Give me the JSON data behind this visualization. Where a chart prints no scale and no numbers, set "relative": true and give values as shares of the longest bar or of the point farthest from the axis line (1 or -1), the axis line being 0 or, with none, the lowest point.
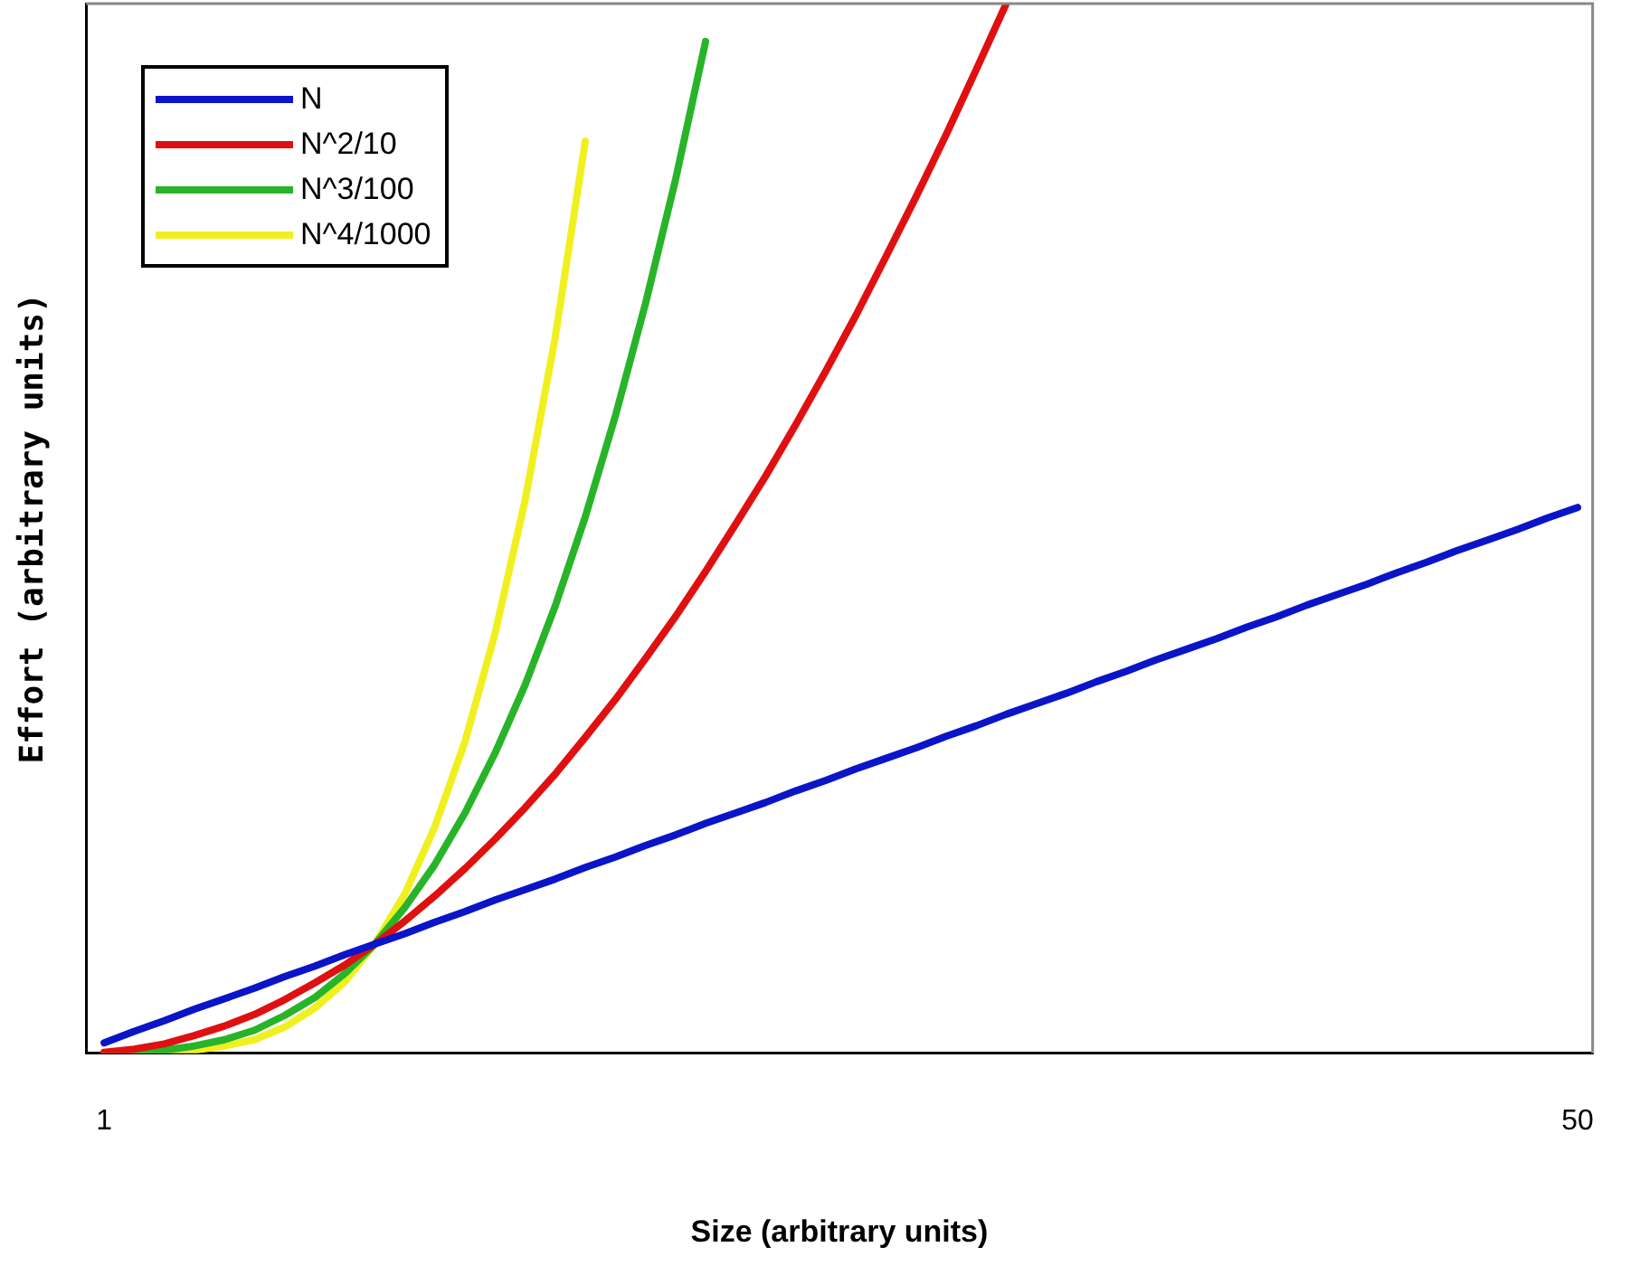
{
  "chart_data": {
    "type": "line",
    "relative": true,
    "xlabel": "Size (arbitrary units)",
    "ylabel": "Effort (arbitrary units)",
    "xlim": [
      0.4,
      50.5
    ],
    "xticks": [
      1,
      50
    ],
    "legend": "top left",
    "grid": false,
    "marker": "none",
    "line_style": "solid",
    "series": [
      {
        "name": "N",
        "color": "#0a14c8",
        "x": [
          1,
          2,
          3,
          4,
          5,
          6,
          7,
          8,
          9,
          10,
          11,
          12,
          13,
          14,
          15,
          16,
          17,
          18,
          19,
          20,
          21,
          22,
          23,
          24,
          25,
          26,
          27,
          28,
          29,
          30,
          31,
          32,
          33,
          34,
          35,
          36,
          37,
          38,
          39,
          40,
          41,
          42,
          43,
          44,
          45,
          46,
          47,
          48,
          49,
          50
        ],
        "values": [
          0.01,
          0.021,
          0.031,
          0.042,
          0.052,
          0.062,
          0.073,
          0.083,
          0.094,
          0.104,
          0.114,
          0.125,
          0.135,
          0.146,
          0.156,
          0.166,
          0.177,
          0.187,
          0.198,
          0.208,
          0.219,
          0.229,
          0.239,
          0.25,
          0.26,
          0.271,
          0.281,
          0.291,
          0.302,
          0.312,
          0.323,
          0.333,
          0.343,
          0.354,
          0.364,
          0.375,
          0.385,
          0.395,
          0.406,
          0.416,
          0.427,
          0.437,
          0.447,
          0.458,
          0.468,
          0.479,
          0.489,
          0.499,
          0.51,
          0.52
        ]
      },
      {
        "name": "N^2/10",
        "color": "#e01010",
        "x": [
          1,
          2,
          3,
          4,
          5,
          6,
          7,
          8,
          9,
          10,
          11,
          12,
          13,
          14,
          15,
          16,
          17,
          18,
          19,
          20,
          21,
          22,
          23,
          24,
          25,
          26,
          27,
          28,
          29,
          30,
          31
        ],
        "values": [
          0.001,
          0.004,
          0.009,
          0.017,
          0.026,
          0.037,
          0.051,
          0.067,
          0.084,
          0.104,
          0.126,
          0.15,
          0.176,
          0.204,
          0.234,
          0.266,
          0.301,
          0.337,
          0.376,
          0.416,
          0.459,
          0.504,
          0.55,
          0.599,
          0.65,
          0.703,
          0.759,
          0.816,
          0.875,
          0.937,
          1.0
        ]
      },
      {
        "name": "N^3/100",
        "color": "#28b428",
        "x": [
          1,
          2,
          3,
          4,
          5,
          6,
          7,
          8,
          9,
          10,
          11,
          12,
          13,
          14,
          15,
          16,
          17,
          18,
          19,
          20,
          21
        ],
        "values": [
          0.0,
          0.001,
          0.003,
          0.007,
          0.013,
          0.022,
          0.036,
          0.053,
          0.076,
          0.104,
          0.139,
          0.18,
          0.229,
          0.286,
          0.351,
          0.426,
          0.511,
          0.607,
          0.714,
          0.832,
          0.964
        ]
      },
      {
        "name": "N^4/1000",
        "color": "#f0f020",
        "x": [
          1,
          2,
          3,
          4,
          5,
          6,
          7,
          8,
          9,
          10,
          11,
          12,
          13,
          14,
          15,
          16,
          17
        ],
        "values": [
          0.0,
          0.0,
          0.001,
          0.003,
          0.007,
          0.013,
          0.025,
          0.043,
          0.068,
          0.104,
          0.152,
          0.216,
          0.297,
          0.4,
          0.527,
          0.682,
          0.869
        ]
      }
    ]
  }
}
